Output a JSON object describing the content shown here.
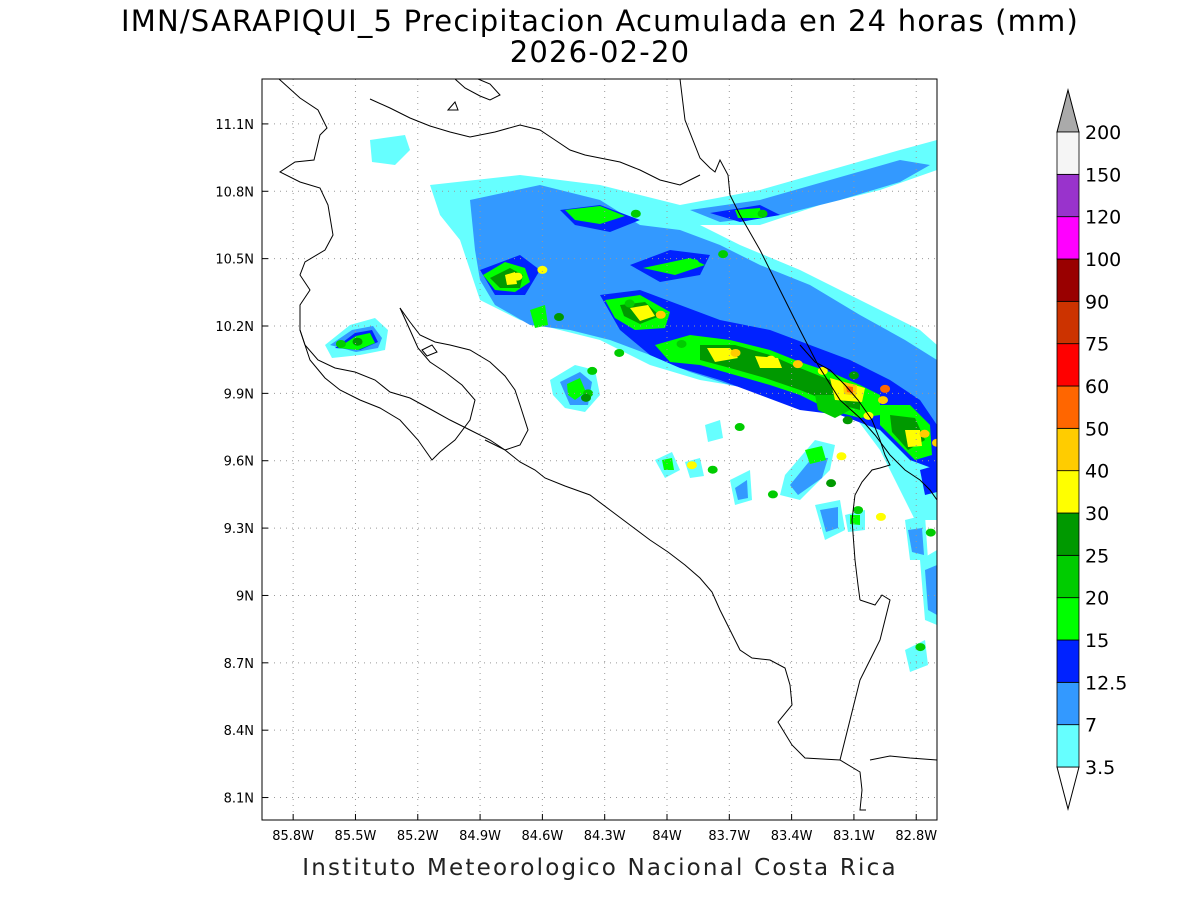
{
  "title": {
    "line1": "IMN/SARAPIQUI_5 Precipitacion Acumulada en 24 horas (mm)",
    "line2": "2026-02-20"
  },
  "footer": "Instituto Meteorologico Nacional Costa Rica",
  "map": {
    "lon_range": [
      -85.95,
      -82.7
    ],
    "lat_range": [
      8.0,
      11.3
    ],
    "lon_ticks": [
      {
        "value": -85.8,
        "label": "85.8W"
      },
      {
        "value": -85.5,
        "label": "85.5W"
      },
      {
        "value": -85.2,
        "label": "85.2W"
      },
      {
        "value": -84.9,
        "label": "84.9W"
      },
      {
        "value": -84.6,
        "label": "84.6W"
      },
      {
        "value": -84.3,
        "label": "84.3W"
      },
      {
        "value": -84.0,
        "label": "84W"
      },
      {
        "value": -83.7,
        "label": "83.7W"
      },
      {
        "value": -83.4,
        "label": "83.4W"
      },
      {
        "value": -83.1,
        "label": "83.1W"
      },
      {
        "value": -82.8,
        "label": "82.8W"
      }
    ],
    "lat_ticks": [
      {
        "value": 11.1,
        "label": "11.1N"
      },
      {
        "value": 10.8,
        "label": "10.8N"
      },
      {
        "value": 10.5,
        "label": "10.5N"
      },
      {
        "value": 10.2,
        "label": "10.2N"
      },
      {
        "value": 9.9,
        "label": "9.9N"
      },
      {
        "value": 9.6,
        "label": "9.6N"
      },
      {
        "value": 9.3,
        "label": "9.3N"
      },
      {
        "value": 9.0,
        "label": "9N"
      },
      {
        "value": 8.7,
        "label": "8.7N"
      },
      {
        "value": 8.4,
        "label": "8.4N"
      },
      {
        "value": 8.1,
        "label": "8.1N"
      }
    ],
    "grid": "dotted",
    "colorbar": [
      {
        "label": "3.5",
        "color": "#66ffff"
      },
      {
        "label": "7",
        "color": "#3399ff"
      },
      {
        "label": "12.5",
        "color": "#0022ff"
      },
      {
        "label": "15",
        "color": "#00ff00"
      },
      {
        "label": "20",
        "color": "#00cc00"
      },
      {
        "label": "25",
        "color": "#009900"
      },
      {
        "label": "30",
        "color": "#ffff00"
      },
      {
        "label": "40",
        "color": "#ffcc00"
      },
      {
        "label": "50",
        "color": "#ff6600"
      },
      {
        "label": "60",
        "color": "#ff0000"
      },
      {
        "label": "75",
        "color": "#cc3300"
      },
      {
        "label": "90",
        "color": "#990000"
      },
      {
        "label": "100",
        "color": "#ff00ff"
      },
      {
        "label": "120",
        "color": "#9933cc"
      },
      {
        "label": "150",
        "color": "#f5f5f5"
      },
      {
        "label": "200",
        "color": "#aaaaaa"
      }
    ],
    "precip_cells": [
      {
        "lon": -85.49,
        "lat": 10.13,
        "level": 5
      },
      {
        "lon": -85.57,
        "lat": 10.12,
        "level": 4
      },
      {
        "lon": -84.72,
        "lat": 10.42,
        "level": 6
      },
      {
        "lon": -84.6,
        "lat": 10.45,
        "level": 6
      },
      {
        "lon": -84.52,
        "lat": 10.24,
        "level": 5
      },
      {
        "lon": -84.38,
        "lat": 9.9,
        "level": 4
      },
      {
        "lon": -84.36,
        "lat": 10.0,
        "level": 4
      },
      {
        "lon": -84.23,
        "lat": 10.08,
        "level": 4
      },
      {
        "lon": -84.18,
        "lat": 10.3,
        "level": 4
      },
      {
        "lon": -84.03,
        "lat": 10.25,
        "level": 7
      },
      {
        "lon": -84.15,
        "lat": 10.7,
        "level": 4
      },
      {
        "lon": -83.87,
        "lat": 10.48,
        "level": 3
      },
      {
        "lon": -83.73,
        "lat": 10.52,
        "level": 4
      },
      {
        "lon": -83.54,
        "lat": 10.7,
        "level": 4
      },
      {
        "lon": -83.93,
        "lat": 10.12,
        "level": 4
      },
      {
        "lon": -83.67,
        "lat": 10.08,
        "level": 7
      },
      {
        "lon": -83.5,
        "lat": 10.05,
        "level": 6
      },
      {
        "lon": -83.37,
        "lat": 10.03,
        "level": 7
      },
      {
        "lon": -83.25,
        "lat": 10.0,
        "level": 6
      },
      {
        "lon": -83.1,
        "lat": 9.98,
        "level": 5
      },
      {
        "lon": -82.95,
        "lat": 9.92,
        "level": 8
      },
      {
        "lon": -82.96,
        "lat": 9.87,
        "level": 7
      },
      {
        "lon": -83.03,
        "lat": 9.8,
        "level": 6
      },
      {
        "lon": -83.13,
        "lat": 9.78,
        "level": 5
      },
      {
        "lon": -82.76,
        "lat": 9.72,
        "level": 7
      },
      {
        "lon": -82.7,
        "lat": 9.68,
        "level": 7
      },
      {
        "lon": -83.65,
        "lat": 9.75,
        "level": 4
      },
      {
        "lon": -83.88,
        "lat": 9.58,
        "level": 6
      },
      {
        "lon": -83.78,
        "lat": 9.56,
        "level": 4
      },
      {
        "lon": -83.49,
        "lat": 9.45,
        "level": 4
      },
      {
        "lon": -83.21,
        "lat": 9.5,
        "level": 5
      },
      {
        "lon": -83.16,
        "lat": 9.62,
        "level": 6
      },
      {
        "lon": -83.08,
        "lat": 9.38,
        "level": 4
      },
      {
        "lon": -82.97,
        "lat": 9.35,
        "level": 6
      },
      {
        "lon": -82.73,
        "lat": 9.28,
        "level": 4
      },
      {
        "lon": -82.78,
        "lat": 8.77,
        "level": 4
      },
      {
        "lon": -84.39,
        "lat": 9.88,
        "level": 5
      }
    ]
  }
}
